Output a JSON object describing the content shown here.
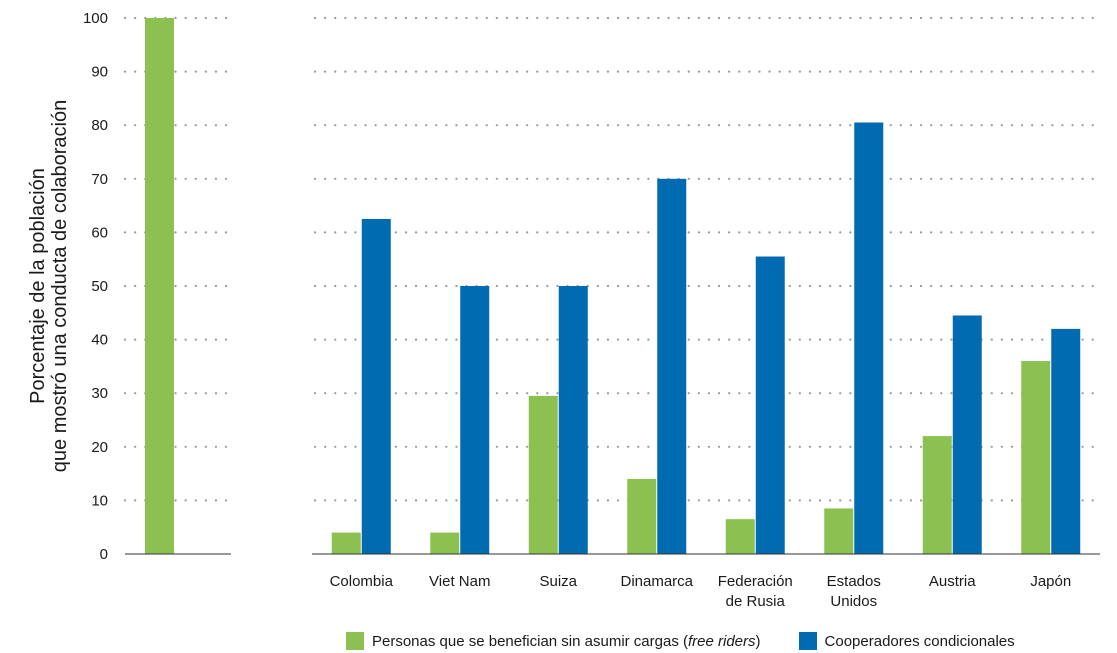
{
  "chart_data": {
    "type": "bar",
    "ylabel_lines": [
      "Porcentaje de la población",
      "que mostró una conducta de colaboración"
    ],
    "ylim": [
      0,
      100
    ],
    "yticks": [
      0,
      10,
      20,
      30,
      40,
      50,
      60,
      70,
      80,
      90,
      100
    ],
    "grid": "dotted-horizontal",
    "legend_position": "bottom",
    "reference_bar": {
      "value": 100,
      "color": "#8cc152"
    },
    "categories": [
      [
        "Colombia"
      ],
      [
        "Viet Nam"
      ],
      [
        "Suiza"
      ],
      [
        "Dinamarca"
      ],
      [
        "Federación",
        "de Rusia"
      ],
      [
        "Estados",
        "Unidos"
      ],
      [
        "Austria"
      ],
      [
        "Japón"
      ]
    ],
    "series": [
      {
        "name": "Personas que se benefician sin asumir cargas (free riders)",
        "color": "#8cc152",
        "values": [
          4,
          4,
          29.5,
          14,
          6.5,
          8.5,
          22,
          36
        ]
      },
      {
        "name": "Cooperadores condicionales",
        "color": "#006bb0",
        "values": [
          62.5,
          50,
          50,
          70,
          55.5,
          80.5,
          44.5,
          42
        ]
      }
    ]
  },
  "legend": {
    "green_label_prefix": "Personas que se benefician sin asumir cargas (",
    "green_label_italic": "free riders",
    "green_label_suffix": ")",
    "blue_label": "Cooperadores condicionales"
  }
}
